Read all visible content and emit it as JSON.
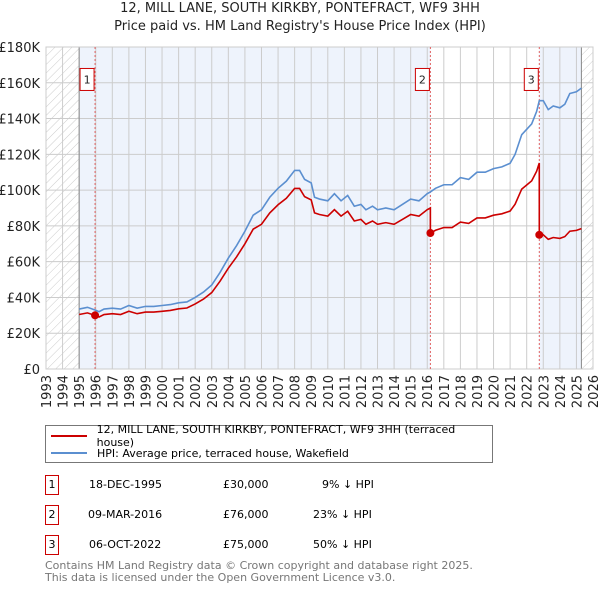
{
  "title": "12, MILL LANE, SOUTH KIRKBY, PONTEFRACT, WF9 3HH",
  "subtitle": "Price paid vs. HM Land Registry's House Price Index (HPI)",
  "legend": [
    {
      "label": "12, MILL LANE, SOUTH KIRKBY, PONTEFRACT, WF9 3HH (terraced house)",
      "color": "#cc0000"
    },
    {
      "label": "HPI: Average price, terraced house, Wakefield",
      "color": "#5b8fd0"
    }
  ],
  "sales": [
    {
      "id": "1",
      "date": "18-DEC-1995",
      "price": "£30,000",
      "hpi": "9% ↓ HPI",
      "x": 1995.96,
      "y": 30
    },
    {
      "id": "2",
      "date": "09-MAR-2016",
      "price": "£76,000",
      "hpi": "23% ↓ HPI",
      "x": 2016.19,
      "y": 76
    },
    {
      "id": "3",
      "date": "06-OCT-2022",
      "price": "£75,000",
      "hpi": "50% ↓ HPI",
      "x": 2022.76,
      "y": 75
    }
  ],
  "footer": [
    "Contains HM Land Registry data © Crown copyright and database right 2025.",
    "This data is licensed under the Open Government Licence v3.0."
  ],
  "chart_data": {
    "type": "line",
    "xlim": [
      1993,
      2026
    ],
    "ylim": [
      0,
      180
    ],
    "xticks": [
      "1993",
      "1994",
      "1995",
      "1996",
      "1997",
      "1998",
      "1999",
      "2000",
      "2001",
      "2002",
      "2003",
      "2004",
      "2005",
      "2006",
      "2007",
      "2008",
      "2009",
      "2010",
      "2011",
      "2012",
      "2013",
      "2014",
      "2015",
      "2016",
      "2017",
      "2018",
      "2019",
      "2020",
      "2021",
      "2022",
      "2023",
      "2024",
      "2025",
      "2026"
    ],
    "yticks": [
      {
        "v": 0,
        "label": "£0"
      },
      {
        "v": 20,
        "label": "£20K"
      },
      {
        "v": 40,
        "label": "£40K"
      },
      {
        "v": 60,
        "label": "£60K"
      },
      {
        "v": 80,
        "label": "£80K"
      },
      {
        "v": 100,
        "label": "£100K"
      },
      {
        "v": 120,
        "label": "£120K"
      },
      {
        "v": 140,
        "label": "£140K"
      },
      {
        "v": 160,
        "label": "£160K"
      },
      {
        "v": 180,
        "label": "£180K"
      }
    ],
    "data_range": [
      1995,
      2025.3
    ],
    "hpi": [
      [
        1995,
        33.5
      ],
      [
        1995.5,
        34.5
      ],
      [
        1995.96,
        33
      ],
      [
        1996.2,
        32
      ],
      [
        1996.5,
        33.5
      ],
      [
        1997,
        34
      ],
      [
        1997.5,
        33.5
      ],
      [
        1998,
        35.5
      ],
      [
        1998.5,
        34
      ],
      [
        1999,
        35
      ],
      [
        1999.5,
        35
      ],
      [
        2000,
        35.5
      ],
      [
        2000.5,
        36
      ],
      [
        2001,
        37
      ],
      [
        2001.5,
        37.5
      ],
      [
        2002,
        40
      ],
      [
        2002.5,
        43
      ],
      [
        2003,
        47
      ],
      [
        2003.5,
        54
      ],
      [
        2004,
        62
      ],
      [
        2004.5,
        69
      ],
      [
        2005,
        77
      ],
      [
        2005.5,
        86
      ],
      [
        2006,
        89
      ],
      [
        2006.5,
        96
      ],
      [
        2007,
        101
      ],
      [
        2007.5,
        105
      ],
      [
        2008,
        111
      ],
      [
        2008.3,
        111
      ],
      [
        2008.6,
        106
      ],
      [
        2009,
        104
      ],
      [
        2009.2,
        96
      ],
      [
        2009.5,
        95
      ],
      [
        2010,
        94
      ],
      [
        2010.4,
        98
      ],
      [
        2010.8,
        94
      ],
      [
        2011.2,
        97
      ],
      [
        2011.6,
        91
      ],
      [
        2012,
        92
      ],
      [
        2012.3,
        89
      ],
      [
        2012.7,
        91
      ],
      [
        2013,
        89
      ],
      [
        2013.5,
        90
      ],
      [
        2014,
        89
      ],
      [
        2014.5,
        92
      ],
      [
        2015,
        95
      ],
      [
        2015.5,
        94
      ],
      [
        2016,
        98
      ],
      [
        2016.19,
        99
      ],
      [
        2016.5,
        101
      ],
      [
        2017,
        103
      ],
      [
        2017.5,
        103
      ],
      [
        2018,
        107
      ],
      [
        2018.5,
        106
      ],
      [
        2019,
        110
      ],
      [
        2019.5,
        110
      ],
      [
        2020,
        112
      ],
      [
        2020.5,
        113
      ],
      [
        2021,
        115
      ],
      [
        2021.3,
        120
      ],
      [
        2021.7,
        131
      ],
      [
        2022,
        134
      ],
      [
        2022.3,
        137
      ],
      [
        2022.6,
        144
      ],
      [
        2022.76,
        150
      ],
      [
        2023,
        150
      ],
      [
        2023.3,
        145
      ],
      [
        2023.6,
        147
      ],
      [
        2024,
        146
      ],
      [
        2024.3,
        148
      ],
      [
        2024.6,
        154
      ],
      [
        2025,
        155
      ],
      [
        2025.3,
        157
      ]
    ]
  }
}
